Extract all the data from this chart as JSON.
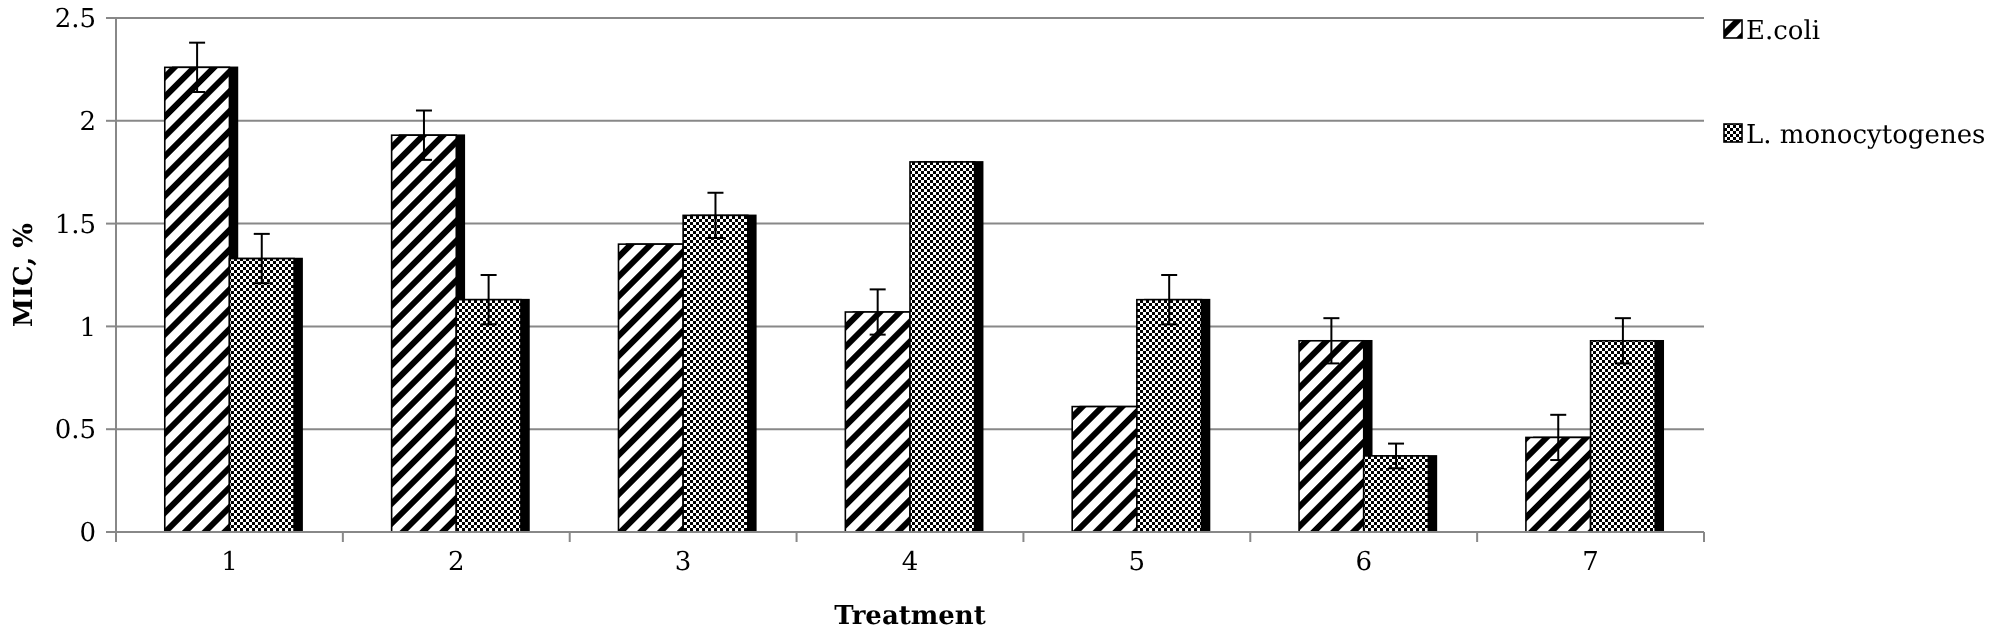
{
  "chart_data": {
    "type": "bar",
    "xlabel": "Treatment",
    "ylabel": "MIC, %",
    "categories": [
      "1",
      "2",
      "3",
      "4",
      "5",
      "6",
      "7"
    ],
    "series": [
      {
        "name": "E.coli",
        "color": "#000000",
        "values": [
          2.26,
          1.93,
          1.4,
          1.07,
          0.61,
          0.93,
          0.46
        ],
        "errors": [
          0.12,
          0.12,
          null,
          0.11,
          null,
          0.11,
          0.11
        ]
      },
      {
        "name": "L. monocytogenes",
        "color": "#000000",
        "values": [
          1.33,
          1.13,
          1.54,
          1.8,
          1.13,
          0.37,
          0.93
        ],
        "errors": [
          0.12,
          0.12,
          0.11,
          null,
          0.12,
          0.06,
          0.11
        ]
      }
    ],
    "ylim": [
      0,
      2.5
    ],
    "yticks": [
      0,
      0.5,
      1,
      1.5,
      2,
      2.5
    ],
    "grid": "y",
    "legend": "top right"
  }
}
